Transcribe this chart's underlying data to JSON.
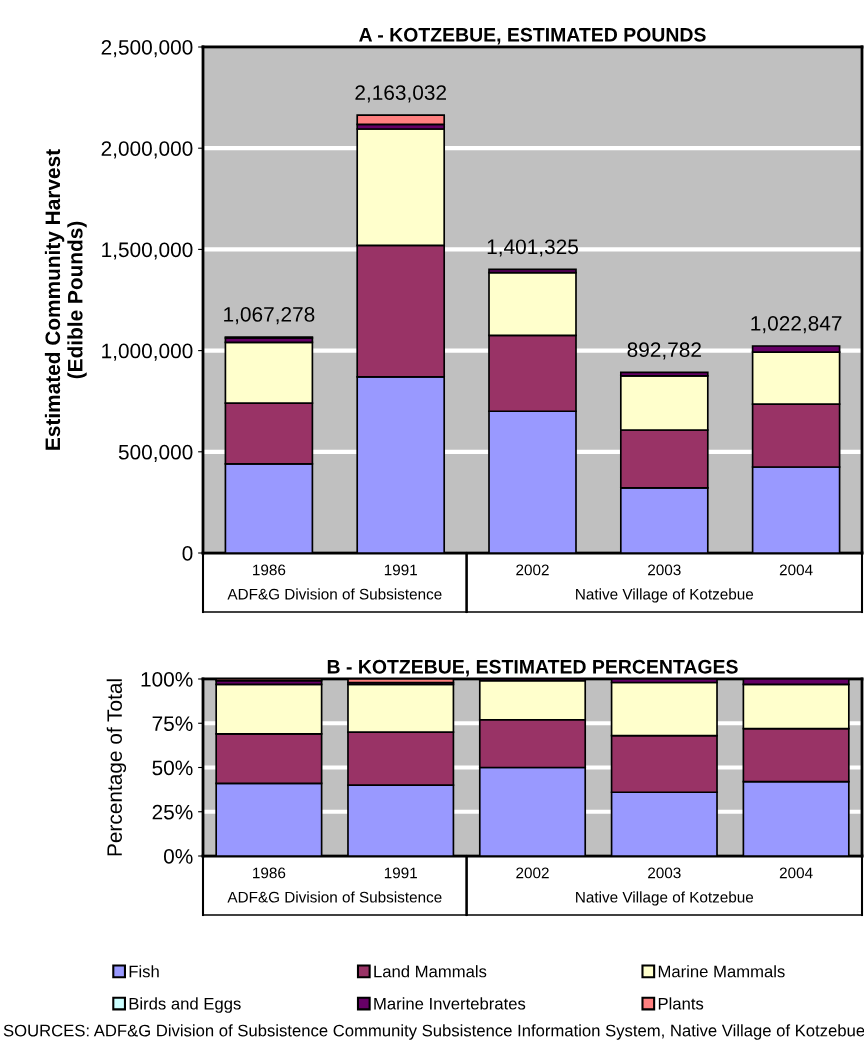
{
  "chart_data": [
    {
      "type": "bar",
      "title": "A - KOTZEBUE, ESTIMATED POUNDS",
      "ylabel": "Estimated Community Harvest\n(Edible Pounds)",
      "stacked": true,
      "categories": [
        "1986",
        "1991",
        "2002",
        "2003",
        "2004"
      ],
      "series": [
        {
          "color": "#9999ff",
          "values": [
            440278,
            870032,
            700325,
            321782,
            424847
          ]
        },
        {
          "color": "#993366",
          "values": [
            300000,
            650000,
            375000,
            286000,
            311000
          ]
        },
        {
          "color": "#ffffcc",
          "values": [
            300000,
            575000,
            310000,
            267000,
            257000
          ]
        },
        {
          "color": "#ccffff",
          "values": [
            0,
            0,
            0,
            0,
            0
          ]
        },
        {
          "color": "#660066",
          "values": [
            22000,
            23000,
            16000,
            18000,
            30000
          ]
        },
        {
          "color": "#ff8080",
          "values": [
            5000,
            45000,
            0,
            0,
            0
          ]
        }
      ],
      "totals": [
        "1,067,278",
        "2,163,032",
        "1,401,325",
        "892,782",
        "1,022,847"
      ],
      "ylim": [
        0,
        2500000
      ],
      "yticks": [
        {
          "value": 0,
          "label": "0"
        },
        {
          "value": 500000,
          "label": "500,000"
        },
        {
          "value": 1000000,
          "label": "1,000,000"
        },
        {
          "value": 1500000,
          "label": "1,500,000"
        },
        {
          "value": 2000000,
          "label": "2,000,000"
        },
        {
          "value": 2500000,
          "label": "2,500,000"
        }
      ],
      "grid": "y",
      "annotations": [
        "ADF&G Division of Subsistence",
        "Native Village of Kotzebue"
      ]
    },
    {
      "type": "bar",
      "title": "B - KOTZEBUE, ESTIMATED PERCENTAGES",
      "ylabel": "Percentage of Total",
      "stacked": true,
      "categories": [
        "1986",
        "1991",
        "2002",
        "2003",
        "2004"
      ],
      "series": [
        {
          "name": "Fish",
          "color": "#9999ff",
          "values": [
            41,
            40,
            50,
            36,
            42
          ]
        },
        {
          "name": "Land Mammals",
          "color": "#993366",
          "values": [
            28,
            30,
            27,
            32,
            30
          ]
        },
        {
          "name": "Marine Mammals",
          "color": "#ffffcc",
          "values": [
            28,
            27,
            22,
            30,
            25
          ]
        },
        {
          "name": "Birds and Eggs",
          "color": "#ccffff",
          "values": [
            0,
            0,
            0,
            0,
            0
          ]
        },
        {
          "name": "Marine Invertebrates",
          "color": "#660066",
          "values": [
            2,
            1,
            1,
            2,
            3
          ]
        },
        {
          "name": "Plants",
          "color": "#ff8080",
          "values": [
            1,
            2,
            0,
            0,
            0
          ]
        }
      ],
      "ylim": [
        0,
        100
      ],
      "yticks": [
        {
          "value": 0,
          "label": "0%"
        },
        {
          "value": 25,
          "label": "25%"
        },
        {
          "value": 50,
          "label": "50%"
        },
        {
          "value": 75,
          "label": "75%"
        },
        {
          "value": 100,
          "label": "100%"
        }
      ],
      "grid": "y",
      "legend": "bottom",
      "annotations": [
        "ADF&G Division of Subsistence",
        "Native Village of Kotzebue",
        "SOURCES: ADF&G Division of Subsistence Community Subsistence Information System, Native Village of Kotzebue"
      ]
    }
  ]
}
